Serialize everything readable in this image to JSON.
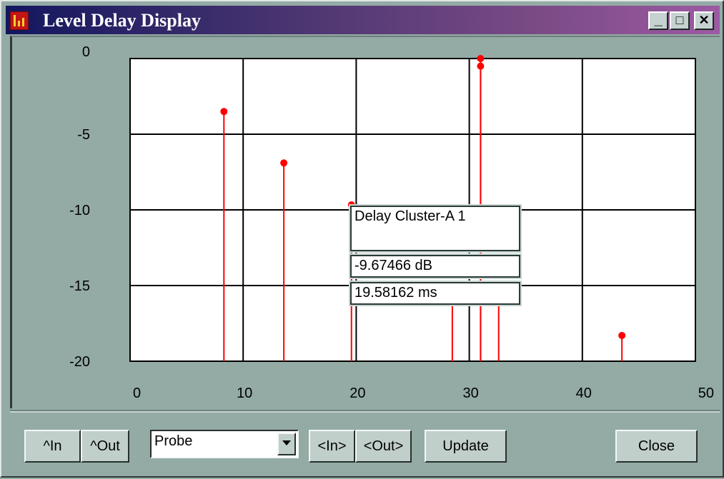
{
  "window": {
    "title": "Level Delay Display",
    "controls": {
      "minimize": "_",
      "maximize": "□",
      "close": "✕"
    }
  },
  "chart_data": {
    "type": "scatter",
    "style": "stem",
    "xlim": [
      0,
      50
    ],
    "ylim": [
      -20,
      0
    ],
    "x_ticks": [
      "0",
      "10",
      "20",
      "30",
      "40",
      "50"
    ],
    "y_ticks": [
      "0",
      "-5",
      "-10",
      "-15",
      "-20"
    ],
    "grid": true,
    "marker_color": "#ff0000",
    "points": [
      {
        "x": 8.3,
        "y": -3.5,
        "marker": true
      },
      {
        "x": 13.6,
        "y": -6.9,
        "marker": true
      },
      {
        "x": 19.58,
        "y": -9.67,
        "marker": true
      },
      {
        "x": 28.5,
        "y": -15.3,
        "marker": false
      },
      {
        "x": 31.0,
        "y": 0.0,
        "marker": true
      },
      {
        "x": 31.0,
        "y": -0.5,
        "marker": true
      },
      {
        "x": 32.6,
        "y": -15.5,
        "marker": false
      },
      {
        "x": 43.5,
        "y": -18.3,
        "marker": true
      }
    ]
  },
  "tooltip": {
    "name": "Delay Cluster-A 1",
    "level": "-9.67466 dB",
    "delay": " 19.58162 ms"
  },
  "toolbar": {
    "in_up": "^In",
    "out_up": "^Out",
    "probe_select": "Probe",
    "in_nav": "<In>",
    "out_nav": "<Out>",
    "update": "Update",
    "close": "Close"
  }
}
